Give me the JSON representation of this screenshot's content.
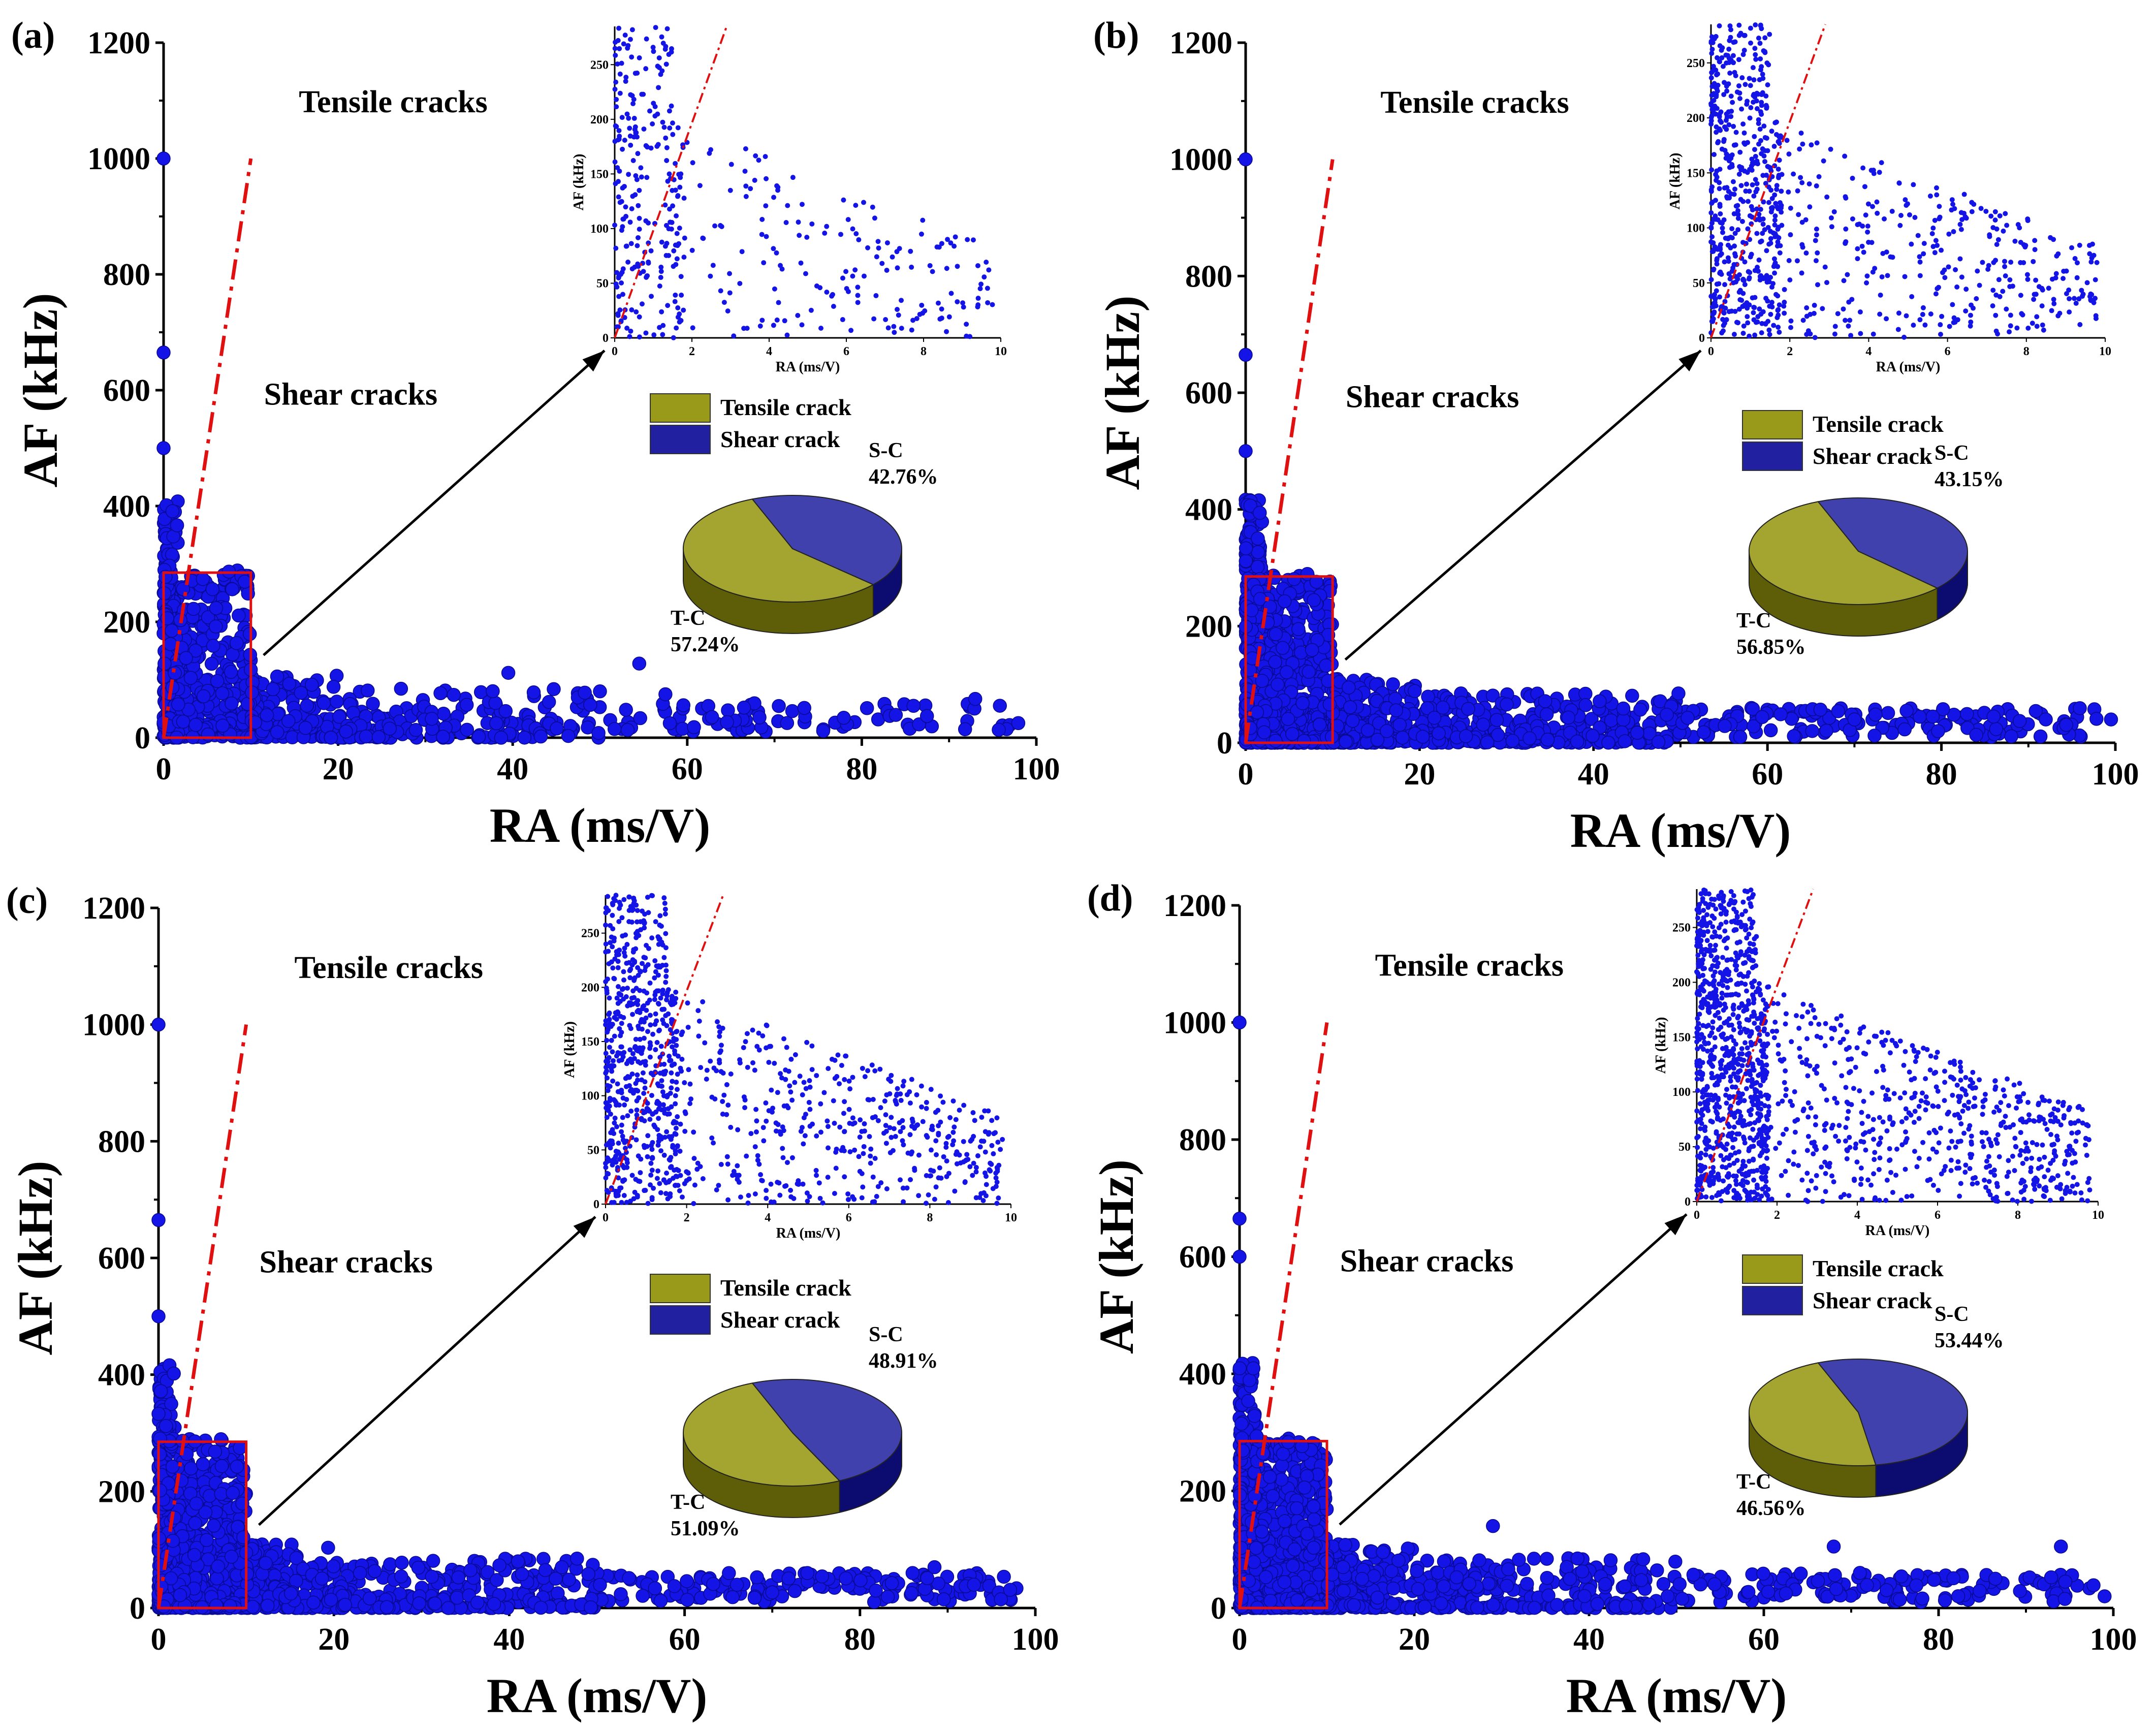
{
  "colors": {
    "tensile": "#9a9a1a",
    "tensile_dark": "#5e5e08",
    "shear": "#2020a0",
    "shear_dark": "#0c0c70",
    "point": "#1414e6",
    "guide": "#e01010",
    "zoom_box": "#e01010"
  },
  "chart_data": [
    {
      "type": "scatter",
      "panel": "(a)",
      "xlabel": "RA (ms/V)",
      "ylabel": "AF (kHz)",
      "xlim": [
        0,
        100
      ],
      "ylim": [
        0,
        1200
      ],
      "xticks": [
        "0",
        "20",
        "40",
        "60",
        "80",
        "100"
      ],
      "yticks": [
        "0",
        "200",
        "400",
        "600",
        "800",
        "1000",
        "1200"
      ],
      "region_labels": {
        "tensile": "Tensile cracks",
        "shear": "Shear cracks"
      },
      "guide_line": {
        "x": [
          0,
          10
        ],
        "y": [
          0,
          1000
        ]
      },
      "zoom_box": {
        "x": [
          0,
          10
        ],
        "y": [
          0,
          285
        ]
      },
      "n_points": 900,
      "notable_points": [
        [
          0,
          1000
        ],
        [
          0,
          665
        ],
        [
          0,
          500
        ],
        [
          39.5,
          112
        ],
        [
          50,
          80
        ],
        [
          54.5,
          128
        ],
        [
          57.5,
          75
        ],
        [
          58,
          25
        ],
        [
          66.5,
          52
        ],
        [
          93,
          67
        ]
      ],
      "inset": {
        "xlabel": "RA (ms/V)",
        "ylabel": "AF (kHz)",
        "xlim": [
          0,
          10
        ],
        "ylim": [
          0,
          285
        ],
        "xticks": [
          "0",
          "2",
          "4",
          "6",
          "8",
          "10"
        ],
        "yticks": [
          "0",
          "50",
          "100",
          "150",
          "200",
          "250"
        ],
        "n_points": 420
      },
      "legend": [
        "Tensile crack",
        "Shear crack"
      ],
      "pie": {
        "slices": [
          {
            "label": "T-C",
            "value": 57.24,
            "text": "57.24%"
          },
          {
            "label": "S-C",
            "value": 42.76,
            "text": "42.76%"
          }
        ]
      }
    },
    {
      "type": "scatter",
      "panel": "(b)",
      "xlabel": "RA (ms/V)",
      "ylabel": "AF (kHz)",
      "xlim": [
        0,
        100
      ],
      "ylim": [
        0,
        1200
      ],
      "xticks": [
        "0",
        "20",
        "40",
        "60",
        "80",
        "100"
      ],
      "yticks": [
        "0",
        "200",
        "400",
        "600",
        "800",
        "1000",
        "1200"
      ],
      "region_labels": {
        "tensile": "Tensile cracks",
        "shear": "Shear cracks"
      },
      "guide_line": {
        "x": [
          0,
          10
        ],
        "y": [
          0,
          1000
        ]
      },
      "zoom_box": {
        "x": [
          0,
          10
        ],
        "y": [
          0,
          285
        ]
      },
      "n_points": 1500,
      "notable_points": [
        [
          0,
          1000
        ],
        [
          0,
          665
        ],
        [
          0,
          500
        ],
        [
          70,
          40
        ],
        [
          76,
          55
        ],
        [
          79,
          45
        ],
        [
          86,
          45
        ],
        [
          92,
          40
        ],
        [
          99.5,
          40
        ]
      ],
      "inset": {
        "xlabel": "RA (ms/V)",
        "ylabel": "AF (kHz)",
        "xlim": [
          0,
          10
        ],
        "ylim": [
          0,
          285
        ],
        "xticks": [
          "0",
          "2",
          "4",
          "6",
          "8",
          "10"
        ],
        "yticks": [
          "0",
          "50",
          "100",
          "150",
          "200",
          "250"
        ],
        "n_points": 900
      },
      "legend": [
        "Tensile crack",
        "Shear crack"
      ],
      "pie": {
        "slices": [
          {
            "label": "T-C",
            "value": 56.85,
            "text": "56.85%"
          },
          {
            "label": "S-C",
            "value": 43.15,
            "text": "43.15%"
          }
        ]
      }
    },
    {
      "type": "scatter",
      "panel": "(c)",
      "xlabel": "RA (ms/V)",
      "ylabel": "AF (kHz)",
      "xlim": [
        0,
        100
      ],
      "ylim": [
        0,
        1200
      ],
      "xticks": [
        "0",
        "20",
        "40",
        "60",
        "80",
        "100"
      ],
      "yticks": [
        "0",
        "200",
        "400",
        "600",
        "800",
        "1000",
        "1200"
      ],
      "region_labels": {
        "tensile": "Tensile cracks",
        "shear": "Shear cracks"
      },
      "guide_line": {
        "x": [
          0,
          10
        ],
        "y": [
          0,
          1000
        ]
      },
      "zoom_box": {
        "x": [
          0,
          10
        ],
        "y": [
          0,
          285
        ]
      },
      "n_points": 1400,
      "notable_points": [
        [
          0,
          1000
        ],
        [
          0,
          665
        ],
        [
          0,
          500
        ],
        [
          41,
          80
        ],
        [
          46,
          70
        ],
        [
          74,
          60
        ],
        [
          86,
          60
        ],
        [
          88.5,
          70
        ],
        [
          93,
          40
        ]
      ],
      "inset": {
        "xlabel": "RA (ms/V)",
        "ylabel": "AF (kHz)",
        "xlim": [
          0,
          10
        ],
        "ylim": [
          0,
          285
        ],
        "xticks": [
          "0",
          "2",
          "4",
          "6",
          "8",
          "10"
        ],
        "yticks": [
          "0",
          "50",
          "100",
          "150",
          "200",
          "250"
        ],
        "n_points": 1100
      },
      "legend": [
        "Tensile crack",
        "Shear crack"
      ],
      "pie": {
        "slices": [
          {
            "label": "T-C",
            "value": 51.09,
            "text": "51.09%"
          },
          {
            "label": "S-C",
            "value": 48.91,
            "text": "48.91%"
          }
        ]
      }
    },
    {
      "type": "scatter",
      "panel": "(d)",
      "xlabel": "RA (ms/V)",
      "ylabel": "AF (kHz)",
      "xlim": [
        0,
        100
      ],
      "ylim": [
        0,
        1200
      ],
      "xticks": [
        "0",
        "20",
        "40",
        "60",
        "80",
        "100"
      ],
      "yticks": [
        "0",
        "200",
        "400",
        "600",
        "800",
        "1000",
        "1200"
      ],
      "region_labels": {
        "tensile": "Tensile cracks",
        "shear": "Shear cracks"
      },
      "guide_line": {
        "x": [
          0,
          10
        ],
        "y": [
          0,
          1000
        ]
      },
      "zoom_box": {
        "x": [
          0,
          10
        ],
        "y": [
          0,
          285
        ]
      },
      "n_points": 1500,
      "notable_points": [
        [
          0,
          1000
        ],
        [
          0,
          665
        ],
        [
          0,
          600
        ],
        [
          29,
          140
        ],
        [
          68,
          105
        ],
        [
          71,
          60
        ],
        [
          86.5,
          50
        ],
        [
          94,
          105
        ],
        [
          94.5,
          45
        ],
        [
          99,
          20
        ]
      ],
      "inset": {
        "xlabel": "RA (ms/V)",
        "ylabel": "AF (kHz)",
        "xlim": [
          0,
          10
        ],
        "ylim": [
          0,
          285
        ],
        "xticks": [
          "0",
          "2",
          "4",
          "6",
          "8",
          "10"
        ],
        "yticks": [
          "0",
          "50",
          "100",
          "150",
          "200",
          "250"
        ],
        "n_points": 1500
      },
      "legend": [
        "Tensile crack",
        "Shear crack"
      ],
      "pie": {
        "slices": [
          {
            "label": "T-C",
            "value": 46.56,
            "text": "46.56%"
          },
          {
            "label": "S-C",
            "value": 53.44,
            "text": "53.44%"
          }
        ]
      }
    }
  ]
}
